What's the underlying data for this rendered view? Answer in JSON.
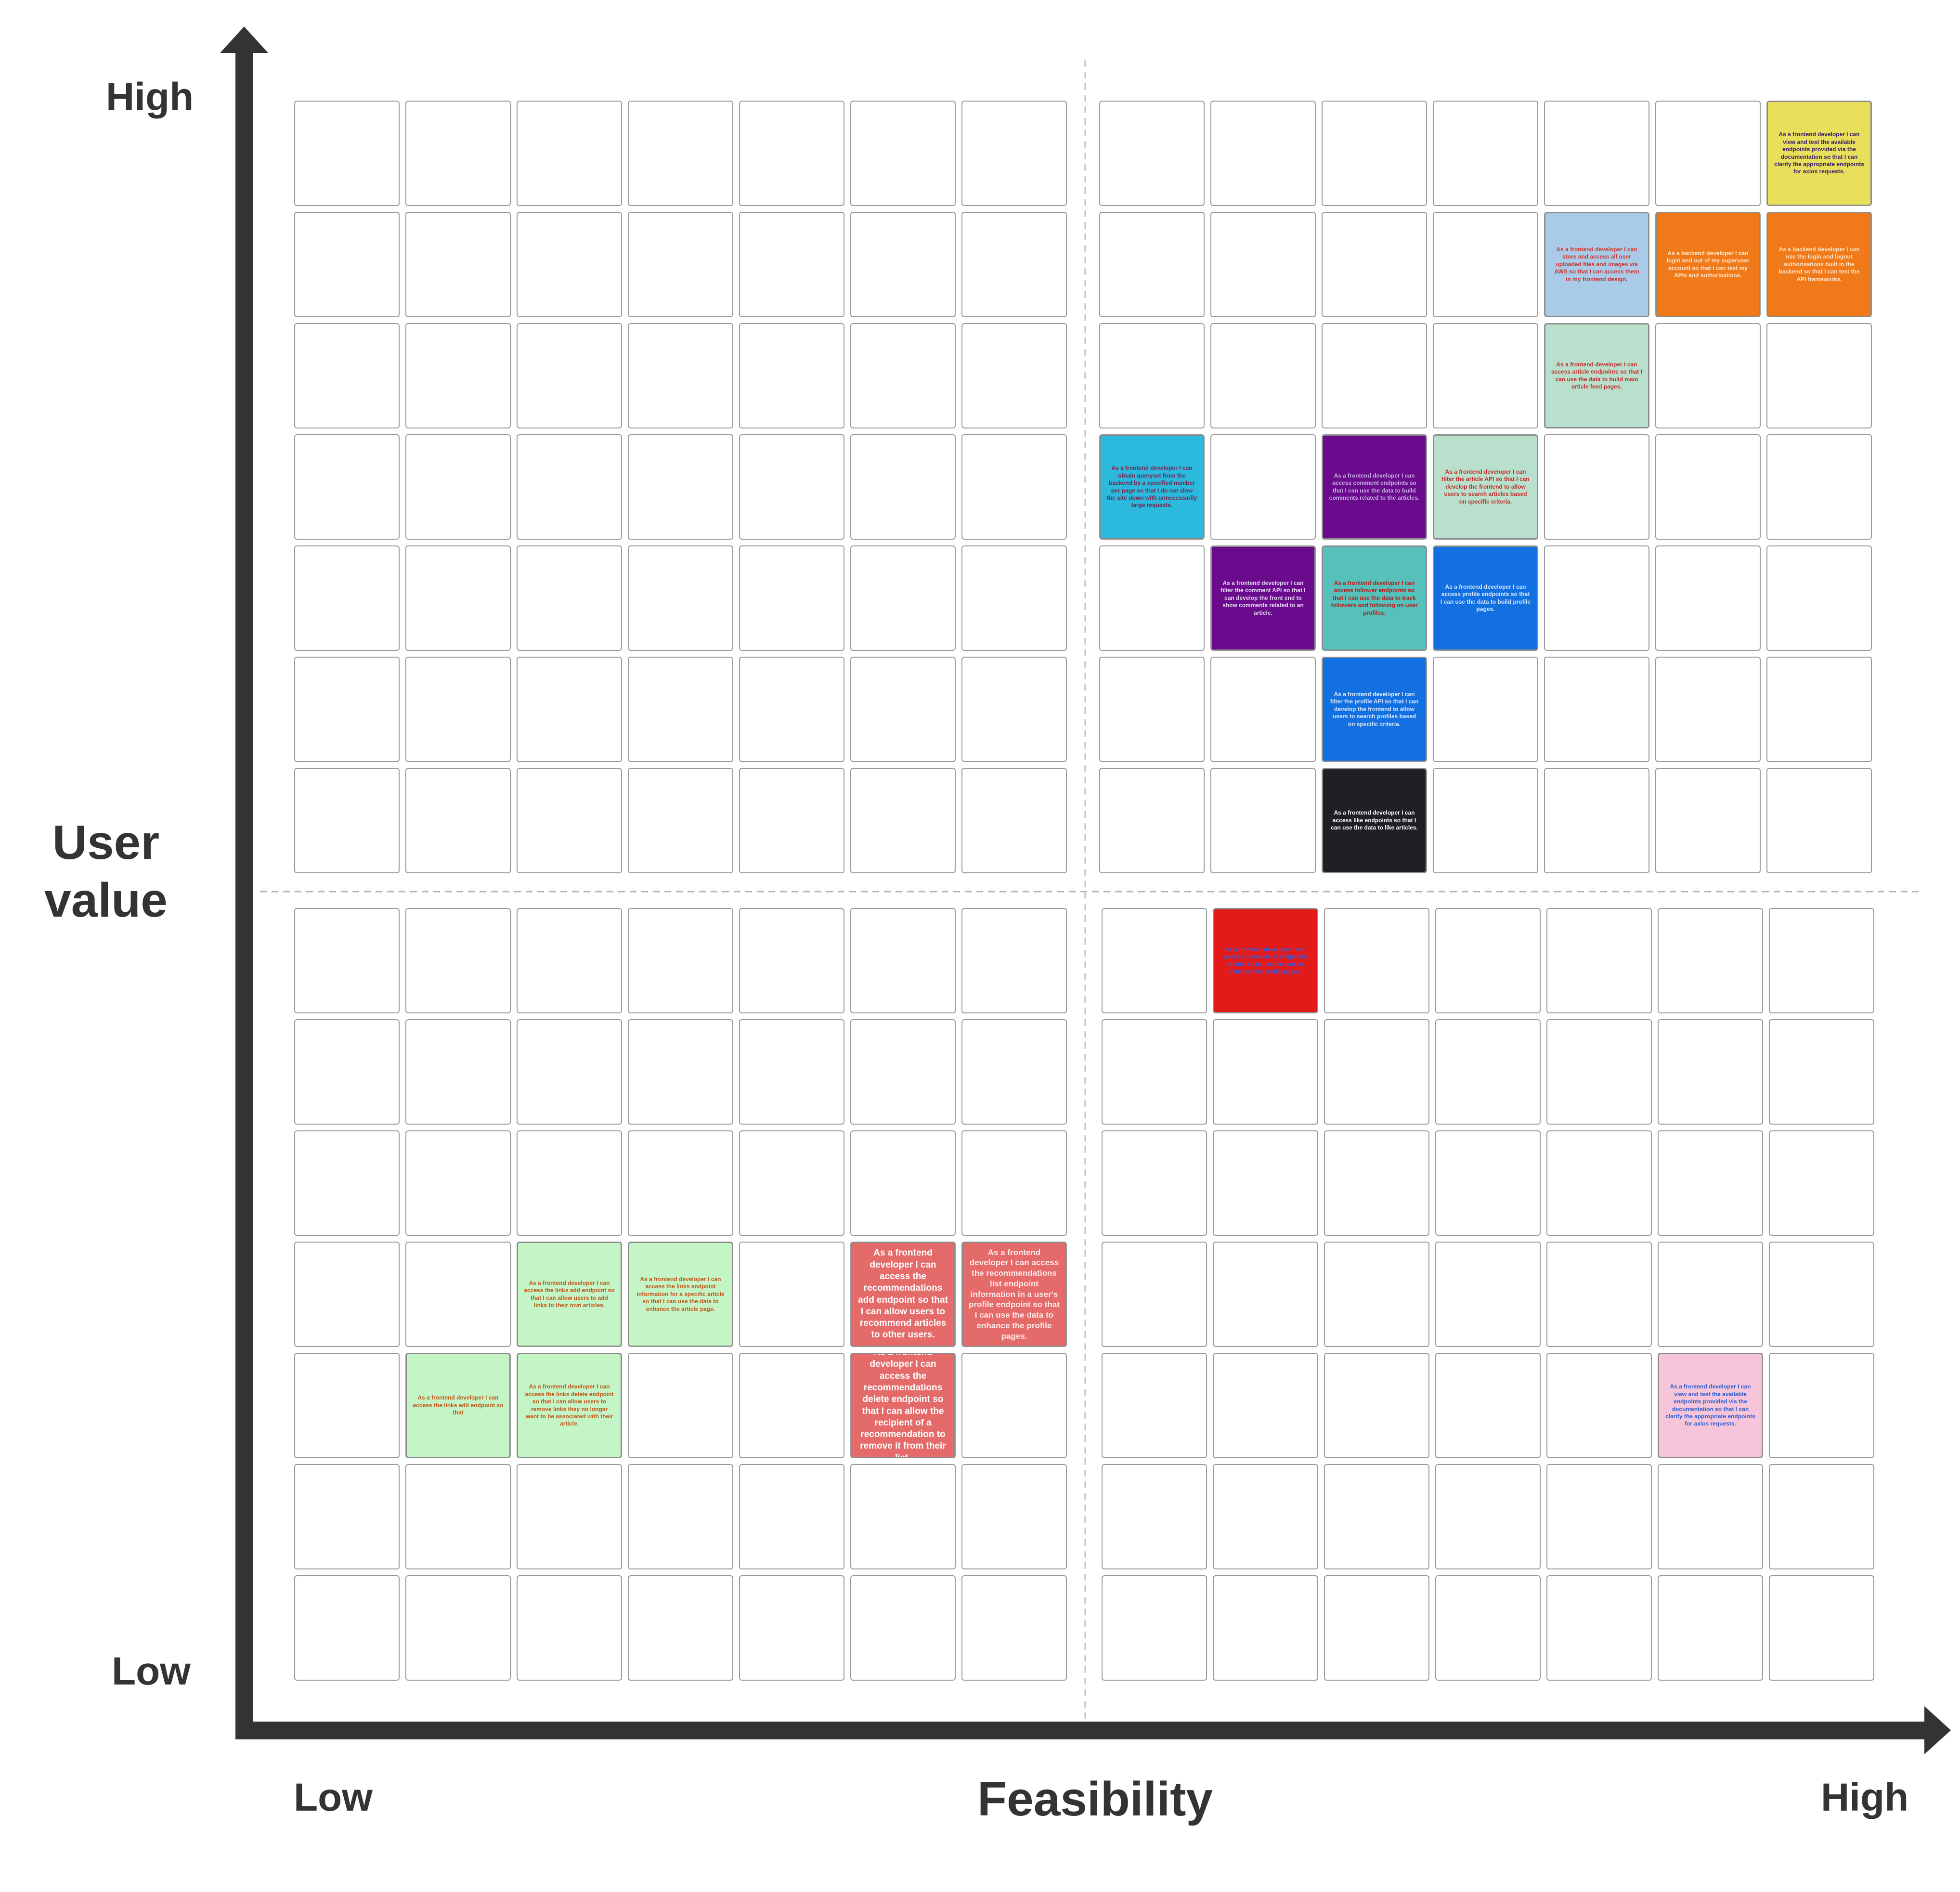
{
  "y_axis": {
    "title": "User\nvalue",
    "high": "High",
    "low": "Low"
  },
  "x_axis": {
    "title": "Feasibility",
    "low": "Low",
    "high": "High"
  },
  "notes": [
    {
      "id": "n1",
      "text": "As a frontend developer I can view and test the available endpoints provided via the documentation so that I can clarify the appropriate endpoints for axios requests.",
      "bg": "#e8e05a",
      "fg": "#3a1d6e",
      "quadrant": "top-right",
      "row": 0,
      "col": 6,
      "size": "small"
    },
    {
      "id": "n2",
      "text": "As a frontend developer I can store and access all user uploaded files and images via AWS so that I can access them in my frontend design.",
      "bg": "#a9cbe8",
      "fg": "#d1342b",
      "quadrant": "top-right",
      "row": 1,
      "col": 4,
      "size": "small"
    },
    {
      "id": "n3",
      "text": "As a backend developer I can login and out of my superuser account so that I can test my APIs and authorisations.",
      "bg": "#f07a1a",
      "fg": "#fde3c6",
      "quadrant": "top-right",
      "row": 1,
      "col": 5,
      "size": "small"
    },
    {
      "id": "n4",
      "text": "As a backend developer I can use the login and logout authorisations built in the backend so that I can test the API frameworks.",
      "bg": "#f07a1a",
      "fg": "#fde3c6",
      "quadrant": "top-right",
      "row": 1,
      "col": 6,
      "size": "small"
    },
    {
      "id": "n5",
      "text": "As a frontend developer I can access article endpoints so that I can use the data to build main article feed pages.",
      "bg": "#b8e0cc",
      "fg": "#c62828",
      "quadrant": "top-right",
      "row": 2,
      "col": 4,
      "size": "small"
    },
    {
      "id": "n6",
      "text": "As a frontend developer I can obtain queryset from the backend by a specified number per page so that I do not slow the site down with unnecessarily large requests.",
      "bg": "#2bb9dd",
      "fg": "#7b1f4a",
      "quadrant": "top-right",
      "row": 3,
      "col": 0,
      "size": "small"
    },
    {
      "id": "n7",
      "text": "As a frontend developer I can access comment endpoints so that I can use the data to build comments related to the articles.",
      "bg": "#6a0a8c",
      "fg": "#c9b3e6",
      "quadrant": "top-right",
      "row": 3,
      "col": 2,
      "size": "small"
    },
    {
      "id": "n8",
      "text": "As a frontend developer I can filter the article API so that I can develop the frontend to allow users to search articles based on specific criteria.",
      "bg": "#b8e0cc",
      "fg": "#c62828",
      "quadrant": "top-right",
      "row": 3,
      "col": 3,
      "size": "small"
    },
    {
      "id": "n9",
      "text": "As a frontend developer I can filter the comment API so that I can develop the front end to show comments related to an article.",
      "bg": "#6a0a8c",
      "fg": "#e4d6f2",
      "quadrant": "top-right",
      "row": 4,
      "col": 1,
      "size": "small"
    },
    {
      "id": "n10",
      "text": "As a frontend developer I can access follower endpoints so that I can use the data to track followers and following on user profiles.",
      "bg": "#56c1bb",
      "fg": "#b71c1c",
      "quadrant": "top-right",
      "row": 4,
      "col": 2,
      "size": "small"
    },
    {
      "id": "n11",
      "text": "As a frontend developer I can access profile endpoints so that I can use the data to build profile pages.",
      "bg": "#1370e0",
      "fg": "#d6e6fb",
      "quadrant": "top-right",
      "row": 4,
      "col": 3,
      "size": "small"
    },
    {
      "id": "n12",
      "text": "As a frontend developer I can filter the profile API so that I can develop the frontend to allow users to search profiles based on specific criteria.",
      "bg": "#1370e0",
      "fg": "#d6e6fb",
      "quadrant": "top-right",
      "row": 5,
      "col": 2,
      "size": "small"
    },
    {
      "id": "n13",
      "text": "As a frontend developer I can access like endpoints so that I can use the data to like articles.",
      "bg": "#1f2023",
      "fg": "#ffffff",
      "quadrant": "top-right",
      "row": 6,
      "col": 2,
      "size": "small"
    },
    {
      "id": "n14",
      "text": "As a frontend developer I can access recommend endpoints so that I can use the data to enhance the profile pages.",
      "bg": "#e21a1a",
      "fg": "#3b5bd9",
      "quadrant": "bottom-right",
      "row": 0,
      "col": 1,
      "size": "small"
    },
    {
      "id": "n15",
      "text": "As a frontend developer I can access the links add endpoint so that I can allow users to add links to their own articles.",
      "bg": "#c3f5c6",
      "fg": "#c4561a",
      "quadrant": "bottom-left",
      "row": 3,
      "col": 2,
      "size": "small"
    },
    {
      "id": "n16",
      "text": "As a frontend developer I can access the links endpoint information for a specific article so that I can use the data to enhance the article page.",
      "bg": "#c3f5c6",
      "fg": "#c4561a",
      "quadrant": "bottom-left",
      "row": 3,
      "col": 3,
      "size": "small"
    },
    {
      "id": "n17",
      "text": "As a frontend developer I can access the recommendations add endpoint so that I can allow users to recommend articles to other users.",
      "bg": "#e56a6a",
      "fg": "#ffffff",
      "quadrant": "bottom-left",
      "row": 3,
      "col": 5,
      "size": "large"
    },
    {
      "id": "n18",
      "text": "As a frontend developer I can access the recommendations list endpoint information in a user's profile endpoint so that I can use the data to enhance the profile pages.",
      "bg": "#e56a6a",
      "fg": "#ffe9e9",
      "quadrant": "bottom-left",
      "row": 3,
      "col": 6,
      "size": "medium"
    },
    {
      "id": "n19",
      "text": "As a frontend developer I can access the links edit endpoint so that",
      "bg": "#c3f5c6",
      "fg": "#c4561a",
      "quadrant": "bottom-left",
      "row": 4,
      "col": 1,
      "size": "small"
    },
    {
      "id": "n20",
      "text": "As a frontend developer I can access the links delete endpoint so that I can allow users to remove links they no longer want to be associated with their article.",
      "bg": "#c3f5c6",
      "fg": "#c4561a",
      "quadrant": "bottom-left",
      "row": 4,
      "col": 2,
      "size": "small"
    },
    {
      "id": "n21",
      "text": "As a frontend developer I can access the recommendations delete endpoint so that I can allow the recipient of a recommendation to remove it from their list.",
      "bg": "#e56a6a",
      "fg": "#ffffff",
      "quadrant": "bottom-left",
      "row": 4,
      "col": 5,
      "size": "large"
    },
    {
      "id": "n22",
      "text": "As a frontend developer I can view and test the available endpoints provided via the documentation so that I can clarify the appropriate endpoints for axios requests.",
      "bg": "#f7c5da",
      "fg": "#2f5fd0",
      "quadrant": "bottom-right",
      "row": 4,
      "col": 5,
      "size": "small"
    }
  ]
}
